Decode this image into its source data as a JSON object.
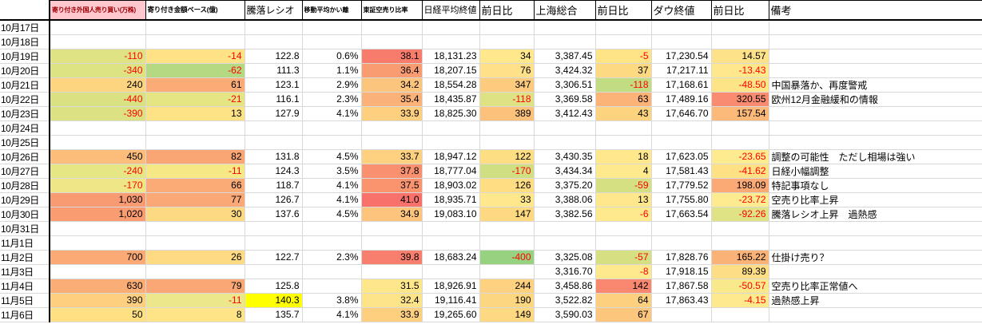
{
  "sheet": {
    "columns": [
      {
        "key": "date",
        "label": ""
      },
      {
        "key": "foreign_open_shares",
        "label": "寄り付き外国人売り買い(万株)"
      },
      {
        "key": "open_amount_base",
        "label": "寄り付き金額ベース(億)"
      },
      {
        "key": "advance_decline_ratio",
        "label": "騰落レシオ"
      },
      {
        "key": "ma_deviation",
        "label": "移動平均かい離"
      },
      {
        "key": "tse_short_sell_ratio",
        "label": "東証空売り比率"
      },
      {
        "key": "nikkei_close",
        "label": "日経平均終値"
      },
      {
        "key": "nikkei_change",
        "label": "前日比"
      },
      {
        "key": "shanghai_composite",
        "label": "上海総合"
      },
      {
        "key": "shanghai_change",
        "label": "前日比"
      },
      {
        "key": "dow_close",
        "label": "ダウ終値"
      },
      {
        "key": "dow_change",
        "label": "前日比"
      },
      {
        "key": "note",
        "label": "備考"
      }
    ],
    "colors": {
      "header_bad_bg": "#ffc7ce",
      "header_bad_text": "#9c0006",
      "negative_text": "#ff0000",
      "gridline": "#d9d9d9",
      "border": "#000000",
      "highlight_yellow": "#ffff00"
    },
    "rows": [
      {
        "date": "10月17日",
        "cells": [],
        "note": ""
      },
      {
        "date": "10月18日",
        "cells": [],
        "note": ""
      },
      {
        "date": "10月19日",
        "cells": [
          {
            "v": "-110",
            "bg": "#e0e384",
            "neg": true
          },
          {
            "v": "-14",
            "bg": "#ffe285",
            "neg": true
          },
          {
            "v": "122.8"
          },
          {
            "v": "0.6%"
          },
          {
            "v": "38.1",
            "bg": "#f87c6c"
          },
          {
            "v": "18,131.23"
          },
          {
            "v": "34",
            "bg": "#ffe78b"
          },
          {
            "v": "3,387.45"
          },
          {
            "v": "-5",
            "bg": "#fee387",
            "neg": true
          },
          {
            "v": "17,230.54"
          },
          {
            "v": "14.57",
            "bg": "#fee28a"
          }
        ],
        "note": ""
      },
      {
        "date": "10月20日",
        "cells": [
          {
            "v": "-340",
            "bg": "#dde283",
            "neg": true
          },
          {
            "v": "-62",
            "bg": "#b5d983",
            "neg": true
          },
          {
            "v": "111.3"
          },
          {
            "v": "1.1%"
          },
          {
            "v": "36.4",
            "bg": "#f99c72"
          },
          {
            "v": "18,207.15"
          },
          {
            "v": "76",
            "bg": "#fee188"
          },
          {
            "v": "3,424.32"
          },
          {
            "v": "37",
            "bg": "#fdd981"
          },
          {
            "v": "17,217.11"
          },
          {
            "v": "-13.43",
            "bg": "#ffe88c",
            "neg": true
          }
        ],
        "note": ""
      },
      {
        "date": "10月21日",
        "cells": [
          {
            "v": "240",
            "bg": "#fdd47f"
          },
          {
            "v": "61",
            "bg": "#fbac76"
          },
          {
            "v": "123.1"
          },
          {
            "v": "2.9%"
          },
          {
            "v": "34.2",
            "bg": "#fcc57d"
          },
          {
            "v": "18,554.28"
          },
          {
            "v": "347",
            "bg": "#fccb7e"
          },
          {
            "v": "3,306.51"
          },
          {
            "v": "-118",
            "bg": "#c2dc82",
            "neg": true
          },
          {
            "v": "17,168.61"
          },
          {
            "v": "-48.50",
            "bg": "#fde487",
            "neg": true
          }
        ],
        "note": "中国暴落か、再度警戒"
      },
      {
        "date": "10月22日",
        "cells": [
          {
            "v": "-440",
            "bg": "#dae183",
            "neg": true
          },
          {
            "v": "-21",
            "bg": "#e5e584",
            "neg": true
          },
          {
            "v": "116.1"
          },
          {
            "v": "2.3%"
          },
          {
            "v": "35.4",
            "bg": "#fbb278"
          },
          {
            "v": "18,435.87"
          },
          {
            "v": "-118",
            "bg": "#dfe284",
            "neg": true
          },
          {
            "v": "3,369.58"
          },
          {
            "v": "63",
            "bg": "#fcb378"
          },
          {
            "v": "17,489.16"
          },
          {
            "v": "320.55",
            "bg": "#f98b70"
          }
        ],
        "note": "欧州12月金融緩和の情報"
      },
      {
        "date": "10月23日",
        "cells": [
          {
            "v": "-390",
            "bg": "#dce283",
            "neg": true
          },
          {
            "v": "13",
            "bg": "#fee386"
          },
          {
            "v": "127.9"
          },
          {
            "v": "4.1%"
          },
          {
            "v": "33.9",
            "bg": "#fdcf7f"
          },
          {
            "v": "18,825.30"
          },
          {
            "v": "389",
            "bg": "#fcc17b"
          },
          {
            "v": "3,412.43"
          },
          {
            "v": "43",
            "bg": "#fdd37f"
          },
          {
            "v": "17,646.70"
          },
          {
            "v": "157.54",
            "bg": "#fbb97a"
          }
        ],
        "note": ""
      },
      {
        "date": "10月24日",
        "cells": [],
        "note": ""
      },
      {
        "date": "10月25日",
        "cells": [],
        "note": ""
      },
      {
        "date": "10月26日",
        "cells": [
          {
            "v": "450",
            "bg": "#fcbc7a"
          },
          {
            "v": "82",
            "bg": "#faa674"
          },
          {
            "v": "131.8"
          },
          {
            "v": "4.5%"
          },
          {
            "v": "33.7",
            "bg": "#fdd180"
          },
          {
            "v": "18,947.12"
          },
          {
            "v": "122",
            "bg": "#fede83"
          },
          {
            "v": "3,430.35"
          },
          {
            "v": "18",
            "bg": "#ffe88c"
          },
          {
            "v": "17,623.05"
          },
          {
            "v": "-23.65",
            "bg": "#ffeb8f",
            "neg": true
          }
        ],
        "note": "調整の可能性　ただし相場は強い"
      },
      {
        "date": "10月27日",
        "cells": [
          {
            "v": "-240",
            "bg": "#e7e685",
            "neg": true
          },
          {
            "v": "-11",
            "bg": "#f6e985",
            "neg": true
          },
          {
            "v": "124.3"
          },
          {
            "v": "3.5%"
          },
          {
            "v": "37.8",
            "bg": "#f9906f"
          },
          {
            "v": "18,777.04"
          },
          {
            "v": "-170",
            "bg": "#cfdf82",
            "neg": true
          },
          {
            "v": "3,434.34"
          },
          {
            "v": "4",
            "bg": "#ffe98d"
          },
          {
            "v": "17,581.43"
          },
          {
            "v": "-41.62",
            "bg": "#fee185",
            "neg": true
          }
        ],
        "note": "日経小幅調整"
      },
      {
        "date": "10月28日",
        "cells": [
          {
            "v": "-170",
            "bg": "#efe786",
            "neg": true
          },
          {
            "v": "66",
            "bg": "#fbab76"
          },
          {
            "v": "118.7"
          },
          {
            "v": "4.1%"
          },
          {
            "v": "37.5",
            "bg": "#f9946f"
          },
          {
            "v": "18,903.02"
          },
          {
            "v": "126",
            "bg": "#fedd83"
          },
          {
            "v": "3,375.20"
          },
          {
            "v": "-59",
            "bg": "#d5e083",
            "neg": true
          },
          {
            "v": "17,779.52"
          },
          {
            "v": "198.09",
            "bg": "#fbaa75"
          }
        ],
        "note": "特記事項なし"
      },
      {
        "date": "10月29日",
        "cells": [
          {
            "v": "1,030",
            "bg": "#f99b72"
          },
          {
            "v": "77",
            "bg": "#faa875"
          },
          {
            "v": "126.7"
          },
          {
            "v": "4.1%"
          },
          {
            "v": "41.0",
            "bg": "#f8716b"
          },
          {
            "v": "18,935.71"
          },
          {
            "v": "33",
            "bg": "#ffe78b"
          },
          {
            "v": "3,388.06"
          },
          {
            "v": "13",
            "bg": "#ffe78b"
          },
          {
            "v": "17,755.80"
          },
          {
            "v": "-23.72",
            "bg": "#ffeb8f",
            "neg": true
          }
        ],
        "note": "空売り比率上昇"
      },
      {
        "date": "10月30日",
        "cells": [
          {
            "v": "1,020",
            "bg": "#f99c72"
          },
          {
            "v": "30",
            "bg": "#fdd981"
          },
          {
            "v": "137.6"
          },
          {
            "v": "4.5%"
          },
          {
            "v": "34.9",
            "bg": "#fcc47d"
          },
          {
            "v": "19,083.10"
          },
          {
            "v": "147",
            "bg": "#fed981"
          },
          {
            "v": "3,382.56"
          },
          {
            "v": "-6",
            "bg": "#ffe98d",
            "neg": true
          },
          {
            "v": "17,663.54"
          },
          {
            "v": "-92.26",
            "bg": "#e0e385",
            "neg": true
          }
        ],
        "note": "騰落レシオ上昇　過熱感"
      },
      {
        "date": "10月31日",
        "cells": [],
        "note": ""
      },
      {
        "date": "11月1日",
        "cells": [],
        "note": ""
      },
      {
        "date": "11月2日",
        "cells": [
          {
            "v": "700",
            "bg": "#fbaa75"
          },
          {
            "v": "26",
            "bg": "#fedb82"
          },
          {
            "v": "122.7"
          },
          {
            "v": "2.3%"
          },
          {
            "v": "39.8",
            "bg": "#f87e6d"
          },
          {
            "v": "18,683.24"
          },
          {
            "v": "-400",
            "bg": "#97d280",
            "neg": true
          },
          {
            "v": "3,325.08"
          },
          {
            "v": "-57",
            "bg": "#d6e083",
            "neg": true
          },
          {
            "v": "17,828.76"
          },
          {
            "v": "165.22",
            "bg": "#fbb277"
          }
        ],
        "note": "仕掛け売り？"
      },
      {
        "date": "11月3日",
        "cells": [
          {
            "v": ""
          },
          {
            "v": ""
          },
          {
            "v": ""
          },
          {
            "v": ""
          },
          {
            "v": ""
          },
          {
            "v": ""
          },
          {
            "v": ""
          },
          {
            "v": "3,316.70"
          },
          {
            "v": "-8",
            "bg": "#ffe98d",
            "neg": true
          },
          {
            "v": "17,918.15"
          },
          {
            "v": "89.39",
            "bg": "#fede84"
          }
        ],
        "note": ""
      },
      {
        "date": "11月4日",
        "cells": [
          {
            "v": "630",
            "bg": "#fbad76"
          },
          {
            "v": "79",
            "bg": "#faa775"
          },
          {
            "v": "125.8"
          },
          {
            "v": ""
          },
          {
            "v": "31.5",
            "bg": "#fee68a"
          },
          {
            "v": "18,926.91"
          },
          {
            "v": "244",
            "bg": "#fdd180"
          },
          {
            "v": "3,458.86"
          },
          {
            "v": "142",
            "bg": "#f98871"
          },
          {
            "v": "17,867.58"
          },
          {
            "v": "-50.57",
            "bg": "#f9e98b",
            "neg": true
          }
        ],
        "note": "空売り比率正常値へ"
      },
      {
        "date": "11月5日",
        "cells": [
          {
            "v": "390",
            "bg": "#fdcf7e"
          },
          {
            "v": "-11",
            "bg": "#ebe78a",
            "neg": true
          },
          {
            "v": "140.3",
            "bg": "#ffff00"
          },
          {
            "v": "3.8%"
          },
          {
            "v": "32.4",
            "bg": "#fee489"
          },
          {
            "v": "19,116.41"
          },
          {
            "v": "190",
            "bg": "#fdd77f"
          },
          {
            "v": "3,522.82"
          },
          {
            "v": "64",
            "bg": "#fdd07f"
          },
          {
            "v": "17,863.43"
          },
          {
            "v": "-4.15",
            "bg": "#ffe98d",
            "neg": true
          }
        ],
        "note": "過熱感上昇"
      },
      {
        "date": "11月6日",
        "cells": [
          {
            "v": "50",
            "bg": "#ffe184"
          },
          {
            "v": "8",
            "bg": "#fee487"
          },
          {
            "v": "135.7"
          },
          {
            "v": "4.1%"
          },
          {
            "v": "33.9",
            "bg": "#fdcf7f"
          },
          {
            "v": "19,265.60"
          },
          {
            "v": "149",
            "bg": "#fed982"
          },
          {
            "v": "3,590.03"
          },
          {
            "v": "67",
            "bg": "#fcc67c"
          },
          {
            "v": ""
          },
          {
            "v": ""
          }
        ],
        "note": ""
      }
    ]
  }
}
